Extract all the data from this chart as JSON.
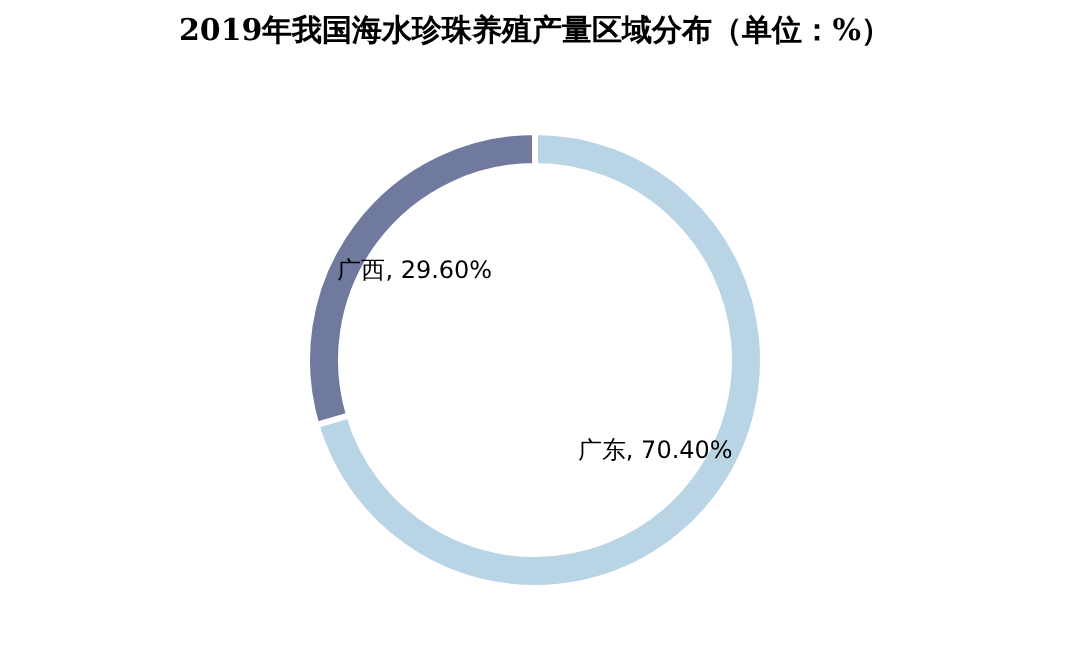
{
  "chart_data": {
    "type": "donut",
    "title": "2019年我国海水珍珠养殖产量区域分布（单位：%）",
    "categories": [
      "广东",
      "广西"
    ],
    "values": [
      70.4,
      29.6
    ],
    "colors": [
      "#b9d4e4",
      "#6f7a9e"
    ],
    "value_labels": [
      "70.40%",
      "29.60%"
    ],
    "legend": false
  }
}
